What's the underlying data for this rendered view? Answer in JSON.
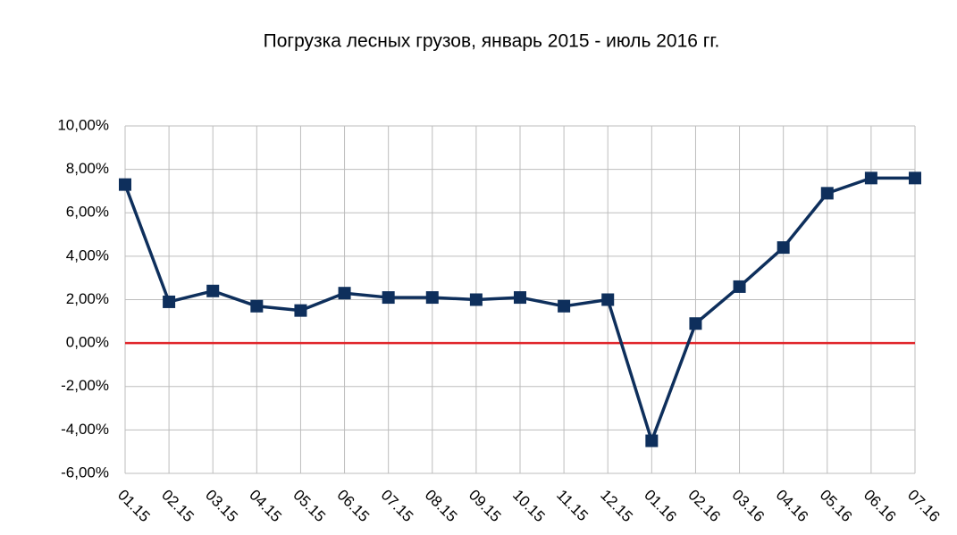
{
  "chart_data": {
    "type": "line",
    "title": "Погрузка лесных грузов, январь 2015 - июль 2016 гг.",
    "categories": [
      "01.15",
      "02.15",
      "03.15",
      "04.15",
      "05.15",
      "06.15",
      "07.15",
      "08.15",
      "09.15",
      "10.15",
      "11.15",
      "12.15",
      "01.16",
      "02.16",
      "03.16",
      "04.16",
      "05.16",
      "06.16",
      "07.16"
    ],
    "values": [
      7.3,
      1.9,
      2.4,
      1.7,
      1.5,
      2.3,
      2.1,
      2.1,
      2.0,
      2.1,
      1.7,
      2.0,
      -4.5,
      0.9,
      2.6,
      4.4,
      6.9,
      7.6,
      7.6
    ],
    "color": "#0e2f5c",
    "ylim": [
      -6,
      10
    ],
    "yticks": [
      {
        "value": -6,
        "label": "-6,00%"
      },
      {
        "value": -4,
        "label": "-4,00%"
      },
      {
        "value": -2,
        "label": "-2,00%"
      },
      {
        "value": 0,
        "label": "0,00%"
      },
      {
        "value": 2,
        "label": "2,00%"
      },
      {
        "value": 4,
        "label": "4,00%"
      },
      {
        "value": 6,
        "label": "6,00%"
      },
      {
        "value": 8,
        "label": "8,00%"
      },
      {
        "value": 10,
        "label": "10,00%"
      }
    ],
    "grid": true,
    "reference_line": {
      "value": 0,
      "color": "#e0262b"
    }
  }
}
